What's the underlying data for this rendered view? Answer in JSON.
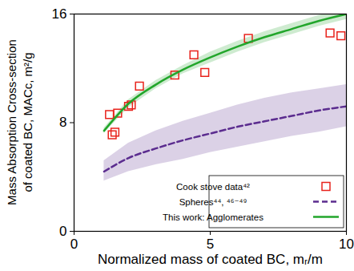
{
  "chart_data": {
    "type": "line",
    "x_label": "Normalized mass of coated BC, mᵣ/m",
    "y_label": [
      "Mass Absorption Cross-section",
      "of coated BC, MACc, m²/g"
    ],
    "xlim": [
      0,
      10
    ],
    "xticks": [
      0,
      5,
      10
    ],
    "ylim": [
      0,
      16
    ],
    "yticks": [
      0,
      8,
      16
    ],
    "legend": "bottom right",
    "series": [
      {
        "name": "Cook stove data⁴²",
        "type": "scatter",
        "marker": "square",
        "color": "#e8231c",
        "x": [
          1.3,
          1.4,
          1.5,
          1.6,
          2.0,
          2.1,
          2.4,
          3.7,
          4.4,
          4.8,
          6.4,
          9.4,
          9.8
        ],
        "values": [
          8.6,
          7.1,
          7.3,
          8.7,
          9.2,
          9.3,
          10.7,
          11.5,
          13.0,
          11.7,
          14.2,
          14.6,
          14.4
        ]
      },
      {
        "name": "Spheres⁴⁴, ⁴⁶⁻⁴⁹",
        "type": "line",
        "line_style": "dashed",
        "color": "#5b2c8f",
        "x": [
          1.1,
          2,
          3,
          4,
          5,
          6,
          7,
          8,
          9,
          10
        ],
        "values": [
          4.4,
          5.4,
          6.1,
          6.7,
          7.2,
          7.7,
          8.1,
          8.5,
          8.9,
          9.2
        ],
        "lower": [
          3.7,
          4.4,
          4.9,
          5.3,
          5.8,
          6.2,
          6.6,
          7.0,
          7.3,
          7.7
        ],
        "upper": [
          5.2,
          6.5,
          7.4,
          8.1,
          8.7,
          9.3,
          9.8,
          10.2,
          10.5,
          10.8
        ]
      },
      {
        "name": "This work: Agglomerates",
        "type": "line",
        "line_style": "solid",
        "color": "#22a62b",
        "x": [
          1.1,
          2,
          3,
          4,
          5,
          6,
          7,
          8,
          9,
          10
        ],
        "values": [
          7.4,
          9.4,
          10.8,
          11.9,
          12.8,
          13.6,
          14.3,
          14.9,
          15.5,
          16.0
        ],
        "lower": [
          7.2,
          9.1,
          10.5,
          11.6,
          12.4,
          13.2,
          13.9,
          14.5,
          15.1,
          15.6
        ],
        "upper": [
          7.6,
          9.7,
          11.1,
          12.2,
          13.2,
          14.0,
          14.7,
          15.3,
          15.9,
          16.3
        ]
      }
    ]
  }
}
